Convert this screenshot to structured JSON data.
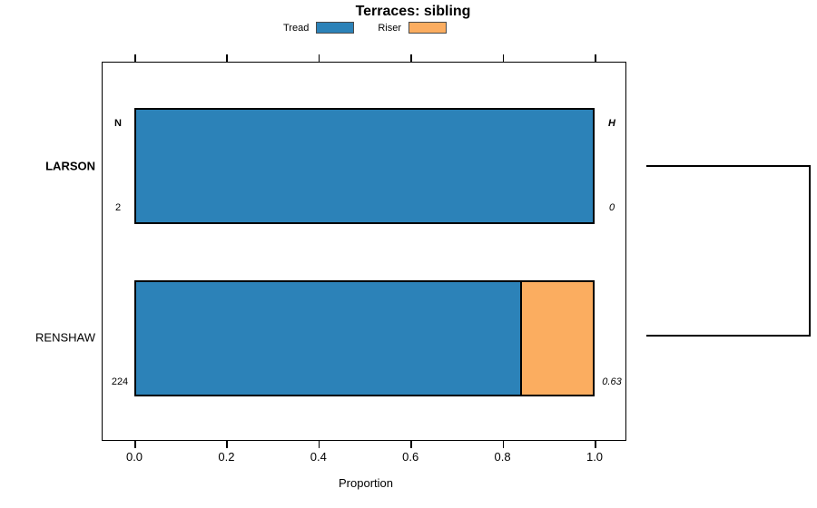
{
  "chart_data": {
    "type": "bar",
    "orientation": "horizontal",
    "stacked": true,
    "title": "Terraces: sibling",
    "xlabel": "Proportion",
    "xlim": [
      0,
      1
    ],
    "xticks": [
      "0.0",
      "0.2",
      "0.4",
      "0.6",
      "0.8",
      "1.0"
    ],
    "grid": false,
    "legend_position": "top",
    "categories": [
      "LARSON",
      "RENSHAW"
    ],
    "series": [
      {
        "name": "Tread",
        "color": "#2C82B8",
        "values": [
          1.0,
          0.84
        ]
      },
      {
        "name": "Riser",
        "color": "#FBAD60",
        "values": [
          0.0,
          0.16
        ]
      }
    ],
    "row_stats": {
      "left_header": "N",
      "right_header": "H",
      "values": [
        {
          "n": "2",
          "h": "0"
        },
        {
          "n": "224",
          "h": "0.63"
        }
      ]
    }
  }
}
